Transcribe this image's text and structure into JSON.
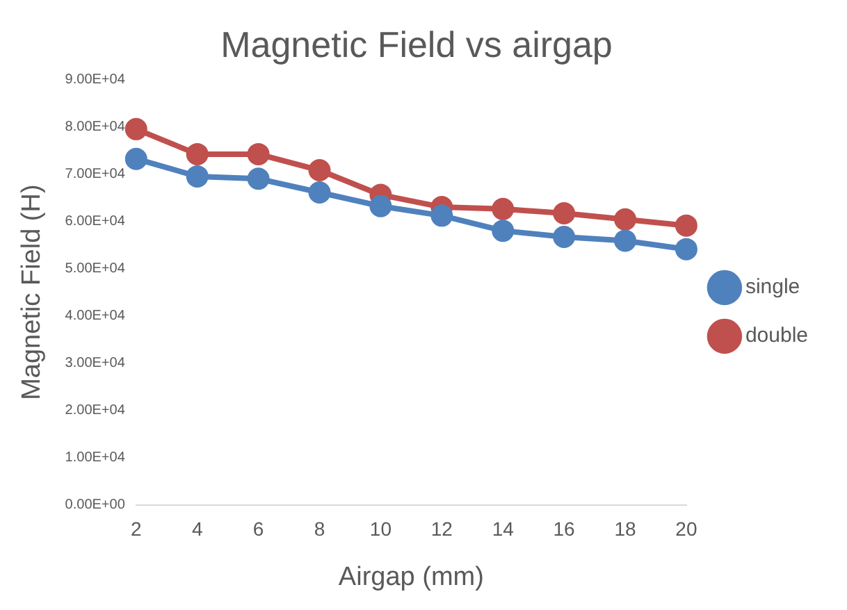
{
  "chart_data": {
    "type": "line",
    "title": "Magnetic Field vs airgap",
    "xlabel": "Airgap (mm)",
    "ylabel": "Magnetic Field (H)",
    "categories": [
      "2",
      "4",
      "6",
      "8",
      "10",
      "12",
      "14",
      "16",
      "18",
      "20"
    ],
    "series": [
      {
        "name": "single",
        "color": "#4f81bd",
        "values": [
          73200,
          69500,
          69000,
          66100,
          63200,
          61200,
          58000,
          56700,
          55900,
          54100
        ]
      },
      {
        "name": "double",
        "color": "#c0504d",
        "values": [
          79500,
          74200,
          74200,
          70800,
          65600,
          63000,
          62600,
          61700,
          60400,
          59100
        ]
      }
    ],
    "ylim": [
      0,
      90000
    ],
    "yticks": [
      {
        "value": 0,
        "label": "0.00E+00"
      },
      {
        "value": 10000,
        "label": "1.00E+04"
      },
      {
        "value": 20000,
        "label": "2.00E+04"
      },
      {
        "value": 30000,
        "label": "3.00E+04"
      },
      {
        "value": 40000,
        "label": "4.00E+04"
      },
      {
        "value": 50000,
        "label": "5.00E+04"
      },
      {
        "value": 60000,
        "label": "6.00E+04"
      },
      {
        "value": 70000,
        "label": "7.00E+04"
      },
      {
        "value": 80000,
        "label": "8.00E+04"
      },
      {
        "value": 90000,
        "label": "9.00E+04"
      }
    ],
    "grid": false,
    "legend": "right",
    "marker": "circle",
    "line_style": "solid"
  }
}
